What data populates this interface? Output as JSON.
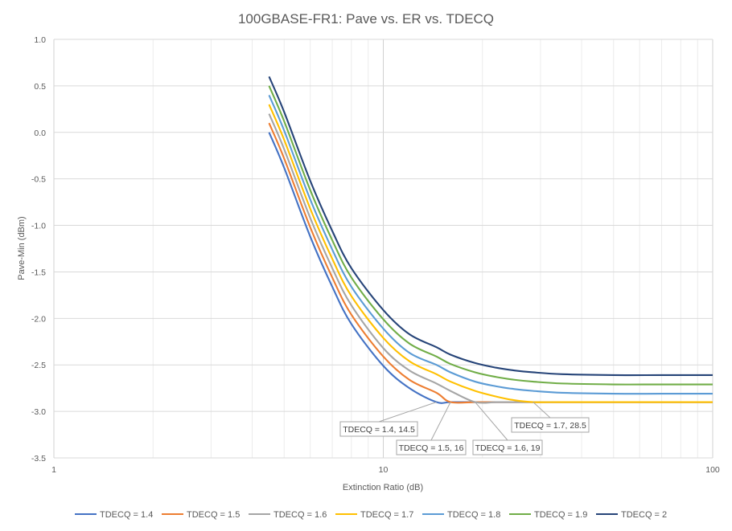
{
  "chart_data": {
    "type": "line",
    "title": "100GBASE-FR1: Pave vs. ER vs. TDECQ",
    "xlabel": "Extinction Ratio (dB)",
    "ylabel": "Pave-Min (dBm)",
    "xscale": "log",
    "xlim": [
      1,
      100
    ],
    "ylim": [
      -3.5,
      1.0
    ],
    "x_ticks": [
      1,
      10,
      100
    ],
    "x_tick_labels": [
      "1",
      "10",
      "100"
    ],
    "y_ticks": [
      1.0,
      0.5,
      0.0,
      -0.5,
      -1.0,
      -1.5,
      -2.0,
      -2.5,
      -3.0,
      -3.5
    ],
    "y_tick_labels": [
      "1.0",
      "0.5",
      "0.0",
      "-0.5",
      "-1.0",
      "-1.5",
      "-2.0",
      "-2.5",
      "-3.0",
      "-3.5"
    ],
    "grid": true,
    "legend_position": "bottom",
    "x": [
      4.5,
      5,
      6,
      7,
      8,
      10,
      12,
      14.5,
      16,
      19,
      22,
      25,
      28.5,
      35,
      50,
      70,
      100
    ],
    "series": [
      {
        "name": "TDECQ = 1.4",
        "color": "#4472C4",
        "values": [
          0.0,
          -0.38,
          -1.12,
          -1.66,
          -2.06,
          -2.51,
          -2.75,
          -2.9,
          -2.9,
          -2.9,
          -2.9,
          -2.9,
          -2.9,
          -2.9,
          -2.9,
          -2.9,
          -2.9
        ]
      },
      {
        "name": "TDECQ = 1.5",
        "color": "#ED7D31",
        "values": [
          0.1,
          -0.28,
          -1.02,
          -1.56,
          -1.96,
          -2.41,
          -2.66,
          -2.8,
          -2.9,
          -2.9,
          -2.9,
          -2.9,
          -2.9,
          -2.9,
          -2.9,
          -2.9,
          -2.9
        ]
      },
      {
        "name": "TDECQ = 1.6",
        "color": "#A5A5A5",
        "values": [
          0.2,
          -0.18,
          -0.92,
          -1.46,
          -1.86,
          -2.32,
          -2.56,
          -2.7,
          -2.78,
          -2.9,
          -2.9,
          -2.9,
          -2.9,
          -2.9,
          -2.9,
          -2.9,
          -2.9
        ]
      },
      {
        "name": "TDECQ = 1.7",
        "color": "#FFC000",
        "values": [
          0.3,
          -0.08,
          -0.82,
          -1.36,
          -1.76,
          -2.21,
          -2.46,
          -2.6,
          -2.68,
          -2.78,
          -2.84,
          -2.88,
          -2.9,
          -2.9,
          -2.9,
          -2.9,
          -2.9
        ]
      },
      {
        "name": "TDECQ = 1.8",
        "color": "#5B9BD5",
        "values": [
          0.4,
          0.02,
          -0.72,
          -1.26,
          -1.66,
          -2.11,
          -2.37,
          -2.5,
          -2.58,
          -2.68,
          -2.73,
          -2.76,
          -2.78,
          -2.8,
          -2.81,
          -2.81,
          -2.81
        ]
      },
      {
        "name": "TDECQ = 1.9",
        "color": "#70AD47",
        "values": [
          0.5,
          0.12,
          -0.62,
          -1.16,
          -1.56,
          -2.01,
          -2.27,
          -2.41,
          -2.49,
          -2.58,
          -2.63,
          -2.66,
          -2.68,
          -2.7,
          -2.71,
          -2.71,
          -2.71
        ]
      },
      {
        "name": "TDECQ = 2",
        "color": "#264478",
        "values": [
          0.6,
          0.22,
          -0.52,
          -1.06,
          -1.46,
          -1.91,
          -2.17,
          -2.31,
          -2.39,
          -2.48,
          -2.53,
          -2.56,
          -2.58,
          -2.6,
          -2.61,
          -2.61,
          -2.61
        ]
      }
    ],
    "annotations": [
      {
        "text": "TDECQ = 1.4, 14.5",
        "x": 14.5,
        "y": -2.9
      },
      {
        "text": "TDECQ = 1.5, 16",
        "x": 16,
        "y": -2.9
      },
      {
        "text": "TDECQ = 1.6, 19",
        "x": 19,
        "y": -2.9
      },
      {
        "text": "TDECQ = 1.7, 28.5",
        "x": 28.5,
        "y": -2.9
      }
    ]
  }
}
